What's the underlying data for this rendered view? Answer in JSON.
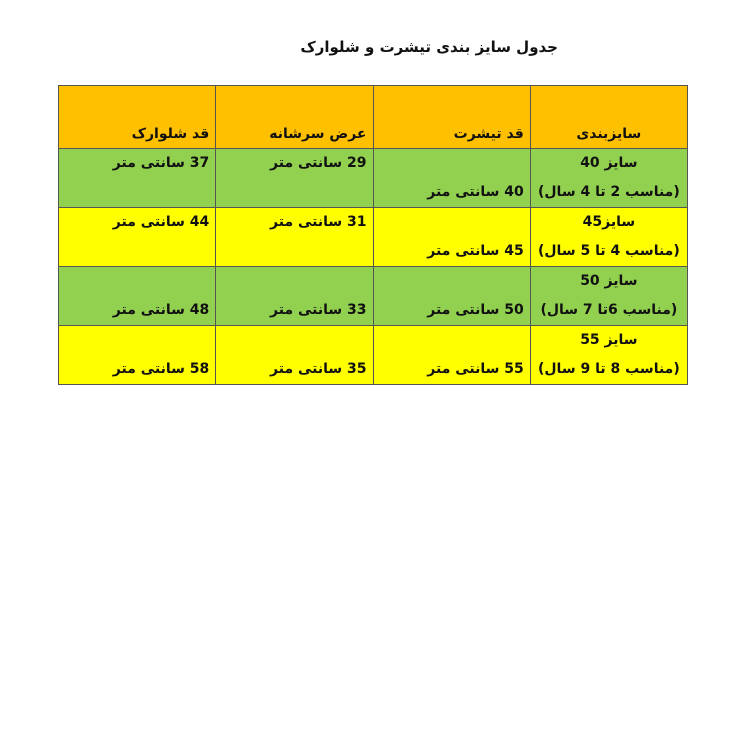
{
  "title": "جدول سایز بندی تیشرت و شلوارک",
  "colors": {
    "header": "#FFC000",
    "green": "#92D050",
    "yellow": "#FFFF00"
  },
  "headers": [
    "سایزبندی",
    "قد تیشرت",
    "عرض سرشانه",
    "قد شلوارک"
  ],
  "rows": [
    {
      "color": "#92D050",
      "cells": [
        {
          "top": "سایز 40",
          "bottom": "(مناسب 2 تا 4 سال)"
        },
        {
          "top": "",
          "bottom": "40 سانتی متر"
        },
        {
          "top": "29 سانتی متر",
          "bottom": ""
        },
        {
          "top": "37 سانتی متر",
          "bottom": ""
        }
      ]
    },
    {
      "color": "#FFFF00",
      "cells": [
        {
          "top": "سایز45",
          "bottom": "(مناسب 4 تا 5 سال)"
        },
        {
          "top": "",
          "bottom": "45 سانتی متر"
        },
        {
          "top": "31 سانتی متر",
          "bottom": ""
        },
        {
          "top": "44 سانتی متر",
          "bottom": ""
        }
      ]
    },
    {
      "color": "#92D050",
      "cells": [
        {
          "top": "سایز 50",
          "bottom": "(مناسب 6تا 7 سال)"
        },
        {
          "top": "",
          "bottom": "50 سانتی متر"
        },
        {
          "top": "",
          "bottom": "33 سانتی متر"
        },
        {
          "top": "",
          "bottom": "48 سانتی متر"
        }
      ]
    },
    {
      "color": "#FFFF00",
      "cells": [
        {
          "top": "سایز 55",
          "bottom": "(مناسب 8 تا 9 سال)"
        },
        {
          "top": "",
          "bottom": "55 سانتی متر"
        },
        {
          "top": "",
          "bottom": "35 سانتی متر"
        },
        {
          "top": "",
          "bottom": "58 سانتی متر"
        }
      ]
    }
  ]
}
